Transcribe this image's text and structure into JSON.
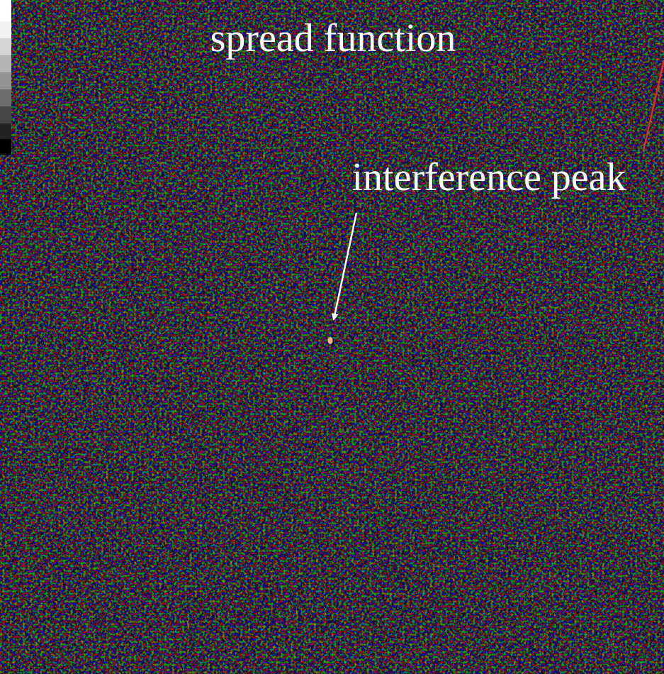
{
  "annotations": {
    "top_label": "spread function",
    "peak_label": "interference peak"
  }
}
